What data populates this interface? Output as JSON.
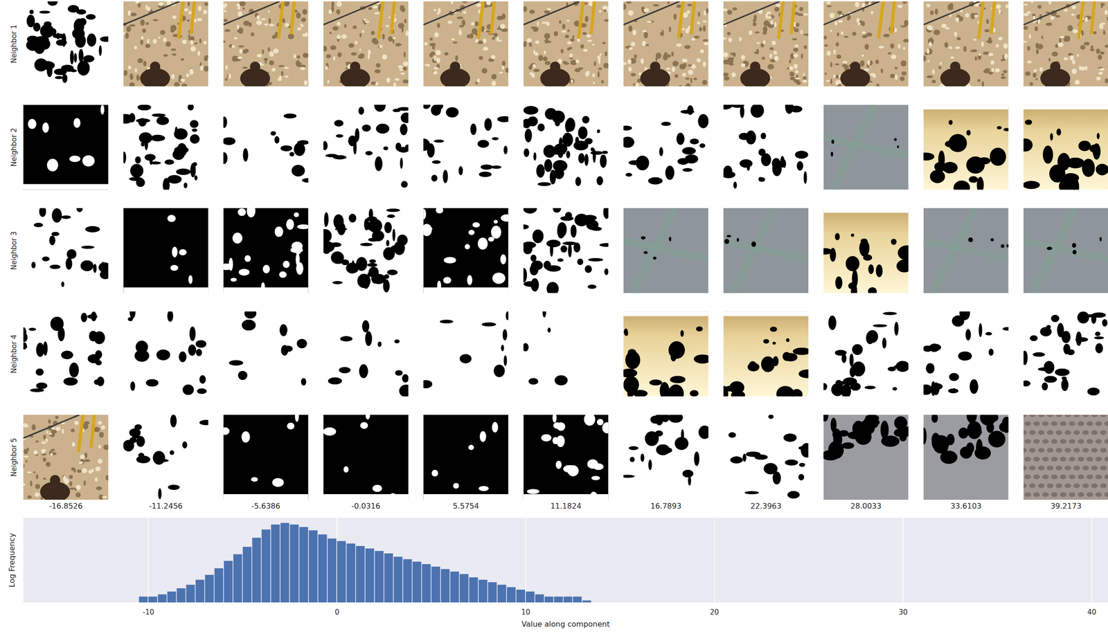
{
  "grid": {
    "row_labels": [
      "Neighbor 1",
      "Neighbor 2",
      "Neighbor 3",
      "Neighbor 4",
      "Neighbor 5"
    ],
    "column_values": [
      -16.8526,
      -11.2456,
      -5.6386,
      -0.0316,
      5.5754,
      11.1824,
      16.7893,
      22.3963,
      28.0033,
      33.6103,
      39.2173
    ]
  },
  "chart_data": {
    "type": "histogram",
    "x_label": "Value along component",
    "y_label": "Log Frequency",
    "color": "#4c72b0",
    "log": "y",
    "grid": true,
    "tick_labels": "x",
    "xlim": [
      -16.63,
      40.86
    ],
    "xticks": [
      -10,
      0,
      10,
      20,
      30,
      40
    ],
    "ylim": [
      0.7,
      3000000
    ],
    "bins": [
      -10.5,
      -10,
      -9.5,
      -9,
      -8.5,
      -8,
      -7.5,
      -7,
      -6.5,
      -6,
      -5.5,
      -5,
      -4.5,
      -4,
      -3.5,
      -3,
      -2.5,
      -2,
      -1.5,
      -1,
      -0.5,
      0,
      0.5,
      1,
      1.5,
      2,
      2.5,
      3,
      3.5,
      4,
      4.5,
      5,
      5.5,
      6,
      6.5,
      7,
      7.5,
      8,
      8.5,
      9,
      9.5,
      10,
      10.5,
      11,
      11.5,
      12,
      12.5,
      13,
      13.5
    ],
    "values": [
      2,
      2,
      3,
      5,
      9,
      17,
      42,
      102,
      336,
      1285,
      4240,
      16200,
      83700,
      372000,
      910000,
      1225000,
      910000,
      582000,
      320000,
      152000,
      72100,
      46000,
      29400,
      18800,
      12000,
      7690,
      4920,
      2710,
      1730,
      1110,
      708,
      453,
      289,
      185,
      118,
      65,
      42,
      27,
      17,
      11,
      7,
      5,
      3,
      2,
      2,
      2,
      2,
      1
    ]
  }
}
